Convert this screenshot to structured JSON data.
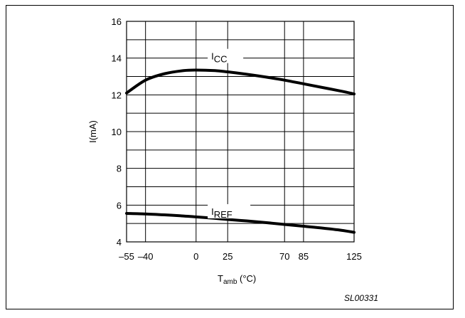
{
  "chart_data": {
    "type": "line",
    "title": "",
    "xlabel": {
      "main": "T",
      "sub": "amb",
      "unit": " (°C)"
    },
    "ylabel": "I(mA)",
    "xlim": [
      -55,
      125
    ],
    "ylim": [
      4,
      16
    ],
    "x_tick_values": [
      -55,
      -40,
      0,
      25,
      70,
      85,
      125
    ],
    "x_tick_labels": [
      "–55",
      "–40",
      "0",
      "25",
      "70",
      "85",
      "125"
    ],
    "y_tick_values": [
      4,
      6,
      8,
      10,
      12,
      14,
      16
    ],
    "y_tick_labels": [
      "4",
      "6",
      "8",
      "10",
      "12",
      "14",
      "16"
    ],
    "grid": true,
    "series": [
      {
        "name": {
          "main": "I",
          "sub": "CC"
        },
        "x": [
          -55,
          -40,
          -25,
          -10,
          0,
          15,
          25,
          40,
          55,
          70,
          85,
          100,
          115,
          125
        ],
        "y": [
          12.1,
          12.8,
          13.15,
          13.32,
          13.35,
          13.32,
          13.25,
          13.12,
          12.97,
          12.8,
          12.6,
          12.4,
          12.2,
          12.05
        ]
      },
      {
        "name": {
          "main": "I",
          "sub": "REF"
        },
        "x": [
          -55,
          -40,
          -25,
          -10,
          0,
          15,
          25,
          40,
          55,
          70,
          85,
          100,
          115,
          125
        ],
        "y": [
          5.55,
          5.52,
          5.47,
          5.41,
          5.36,
          5.28,
          5.22,
          5.14,
          5.05,
          4.95,
          4.85,
          4.75,
          4.63,
          4.52
        ]
      }
    ]
  },
  "figure_id": "SL00331"
}
